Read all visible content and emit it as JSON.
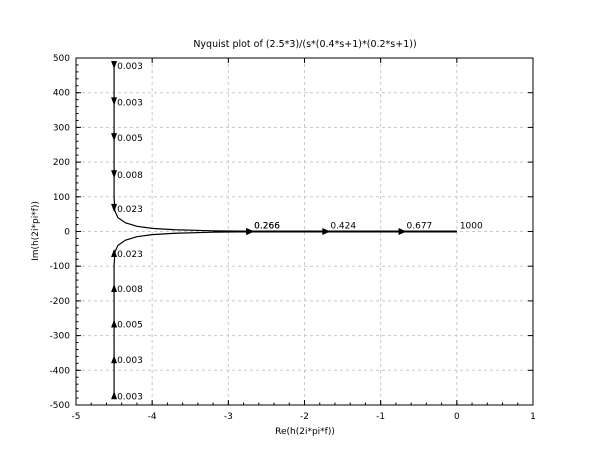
{
  "chart_data": {
    "type": "line",
    "title": "Nyquist plot of (2.5*3)/(s*(0.4*s+1)*(0.2*s+1))",
    "xlabel": "Re(h(2i*pi*f))",
    "ylabel": "Im(h(2i*pi*f))",
    "xlim": [
      -5,
      1
    ],
    "ylim": [
      -500,
      500
    ],
    "xticks": [
      "-5",
      "-4",
      "-3",
      "-2",
      "-1",
      "0",
      "1"
    ],
    "yticks": [
      "500",
      "400",
      "300",
      "200",
      "100",
      "0",
      "-100",
      "-200",
      "-300",
      "-400",
      "-500"
    ],
    "grid": true,
    "series": [
      {
        "points": [
          [
            -4.5,
            480
          ],
          [
            -4.5,
            420
          ],
          [
            -4.5,
            300
          ],
          [
            -4.5,
            200
          ],
          [
            -4.5,
            100
          ],
          [
            -4.49,
            60
          ],
          [
            -4.45,
            40
          ],
          [
            -4.35,
            25
          ],
          [
            -4.2,
            15
          ],
          [
            -4.0,
            9
          ],
          [
            -3.7,
            5
          ],
          [
            -3.2,
            2
          ],
          [
            -2.7,
            0.8
          ],
          [
            -1.7,
            0.2
          ],
          [
            -0.7,
            0.02
          ],
          [
            0,
            0
          ]
        ]
      },
      {
        "points": [
          [
            -4.5,
            -480
          ],
          [
            -4.5,
            -420
          ],
          [
            -4.5,
            -300
          ],
          [
            -4.5,
            -200
          ],
          [
            -4.5,
            -100
          ],
          [
            -4.49,
            -60
          ],
          [
            -4.45,
            -40
          ],
          [
            -4.35,
            -25
          ],
          [
            -4.2,
            -15
          ],
          [
            -4.0,
            -9
          ],
          [
            -3.7,
            -5
          ],
          [
            -3.2,
            -2
          ],
          [
            -2.7,
            -0.8
          ],
          [
            -1.7,
            -0.2
          ],
          [
            -0.7,
            -0.02
          ],
          [
            0,
            0
          ]
        ]
      }
    ],
    "annotations": [
      {
        "text": "0.003",
        "x": -4.5,
        "y": 480,
        "dir": "down"
      },
      {
        "text": "0.003",
        "x": -4.5,
        "y": 375,
        "dir": "down"
      },
      {
        "text": "0.005",
        "x": -4.5,
        "y": 272,
        "dir": "down"
      },
      {
        "text": "0.008",
        "x": -4.5,
        "y": 165,
        "dir": "down"
      },
      {
        "text": "0.023",
        "x": -4.5,
        "y": 68,
        "dir": "down"
      },
      {
        "text": "0.023",
        "x": -4.5,
        "y": -62,
        "dir": "up"
      },
      {
        "text": "0.008",
        "x": -4.5,
        "y": -163,
        "dir": "up"
      },
      {
        "text": "0.005",
        "x": -4.5,
        "y": -265,
        "dir": "up"
      },
      {
        "text": "0.003",
        "x": -4.5,
        "y": -368,
        "dir": "up"
      },
      {
        "text": "0.003",
        "x": -4.5,
        "y": -472,
        "dir": "up"
      },
      {
        "text": "0.266",
        "x": -2.7,
        "y": 0,
        "dir": "right"
      },
      {
        "text": "0.266",
        "x": -2.7,
        "y": 0,
        "dir": "right"
      },
      {
        "text": "0.424",
        "x": -1.7,
        "y": 0,
        "dir": "right"
      },
      {
        "text": "0.677",
        "x": -0.7,
        "y": 0,
        "dir": "right"
      },
      {
        "text": "1000",
        "x": 0,
        "y": 0,
        "dir": "none"
      }
    ]
  }
}
